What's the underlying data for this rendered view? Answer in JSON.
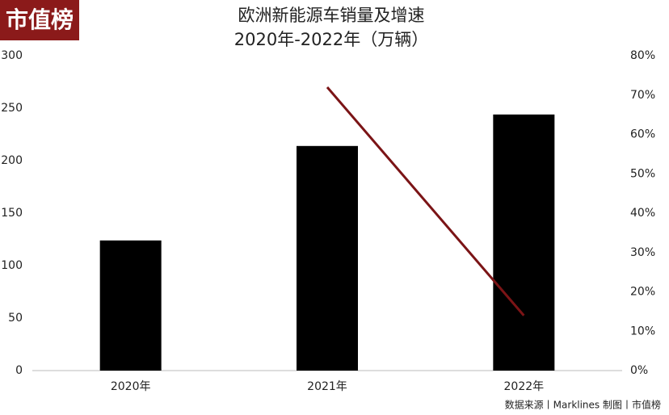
{
  "logo": "市值榜",
  "source": "数据来源丨Marklines 制图丨市值榜",
  "chart_data": {
    "type": "bar",
    "title": "欧洲新能源车销量及增速",
    "subtitle": "2020年-2022年（万辆）",
    "categories": [
      "2020年",
      "2021年",
      "2022年"
    ],
    "series": [
      {
        "type": "bar",
        "color": "#000000",
        "values": [
          124,
          214,
          244
        ]
      },
      {
        "type": "line",
        "color": "#7b1416",
        "axis": "y2",
        "values": [
          null,
          72,
          14
        ]
      }
    ],
    "ylim": [
      0,
      300
    ],
    "yticks": [
      0,
      50,
      100,
      150,
      200,
      250,
      300
    ],
    "y2lim": [
      0,
      80
    ],
    "y2ticks": [
      {
        "value": 0,
        "label": "0%"
      },
      {
        "value": 10,
        "label": "10%"
      },
      {
        "value": 20,
        "label": "20%"
      },
      {
        "value": 30,
        "label": "30%"
      },
      {
        "value": 40,
        "label": "40%"
      },
      {
        "value": 50,
        "label": "50%"
      },
      {
        "value": 60,
        "label": "60%"
      },
      {
        "value": 70,
        "label": "70%"
      },
      {
        "value": 80,
        "label": "80%"
      }
    ]
  }
}
